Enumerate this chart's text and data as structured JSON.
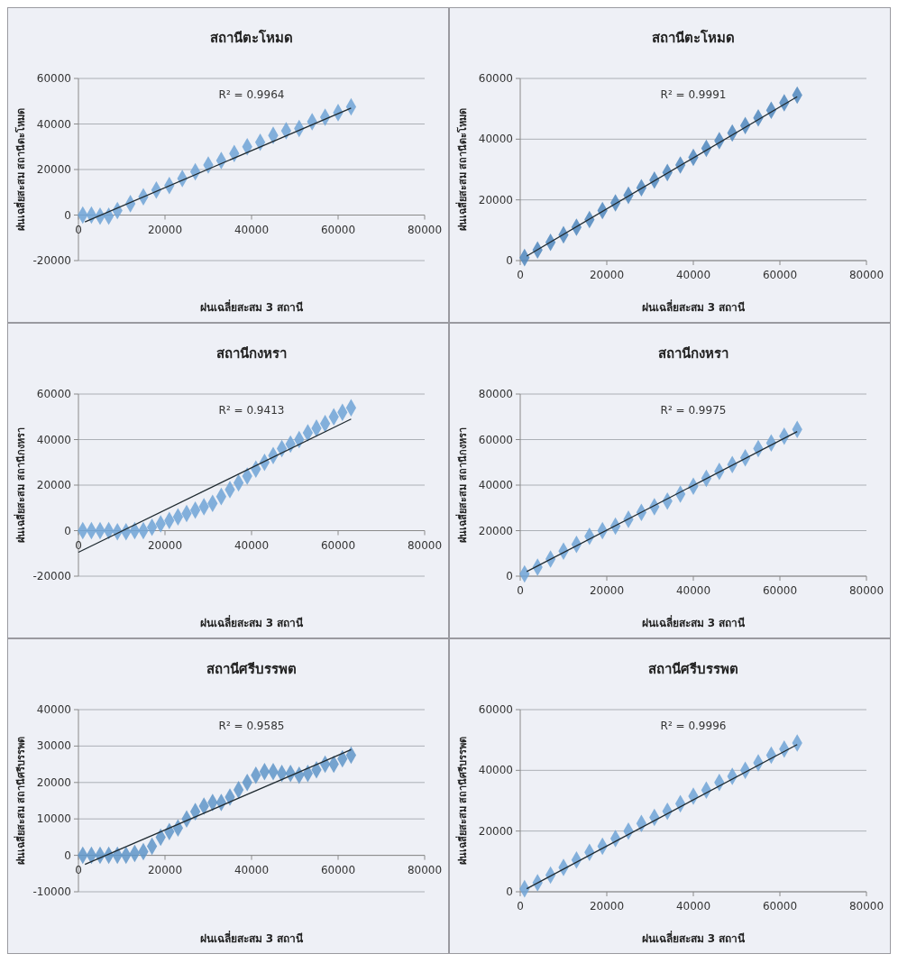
{
  "chart_data": [
    {
      "type": "scatter",
      "title": "สถานีตะโหมด",
      "xlabel": "ฝนเฉลี่ยสะสม 3 สถานี",
      "ylabel": "ฝนเฉลี่ยสะสม สถานีตะโหมด",
      "annotations": [
        "R² = 0.9964"
      ],
      "xlim": [
        0,
        80000
      ],
      "xticks": [
        0,
        20000,
        40000,
        60000,
        80000
      ],
      "ylim": [
        -20000,
        60000
      ],
      "yticks": [
        -20000,
        0,
        20000,
        40000,
        60000
      ],
      "grid": "y",
      "series": [
        {
          "color": "#6fa3d6",
          "marker": "diamond",
          "x": [
            1000,
            3000,
            5000,
            7000,
            9000,
            12000,
            15000,
            18000,
            21000,
            24000,
            27000,
            30000,
            33000,
            36000,
            39000,
            42000,
            45000,
            48000,
            51000,
            54000,
            57000,
            60000,
            63000
          ],
          "values": [
            0,
            0,
            -500,
            -500,
            2000,
            5000,
            8000,
            11000,
            13000,
            16000,
            19000,
            22000,
            24000,
            27000,
            30000,
            32000,
            35000,
            37000,
            38000,
            41000,
            43000,
            45000,
            47500
          ]
        },
        {
          "type": "line",
          "color": "#1f2a30",
          "x": [
            1500,
            63000
          ],
          "values": [
            -3000,
            47000
          ]
        }
      ]
    },
    {
      "type": "scatter",
      "title": "สถานีตะโหมด",
      "xlabel": "ฝนเฉลี่ยสะสม 3 สถานี",
      "ylabel": "ฝนเฉลี่ยสะสม สถานีตะโหมด",
      "annotations": [
        "R² = 0.9991"
      ],
      "xlim": [
        0,
        80000
      ],
      "xticks": [
        0,
        20000,
        40000,
        60000,
        80000
      ],
      "ylim": [
        0,
        60000
      ],
      "yticks": [
        0,
        20000,
        40000,
        60000
      ],
      "grid": "y",
      "series": [
        {
          "color": "#4f87bd",
          "marker": "diamond",
          "x": [
            1000,
            4000,
            7000,
            10000,
            13000,
            16000,
            19000,
            22000,
            25000,
            28000,
            31000,
            34000,
            37000,
            40000,
            43000,
            46000,
            49000,
            52000,
            55000,
            58000,
            61000,
            64000
          ],
          "values": [
            1000,
            3500,
            6000,
            8500,
            11000,
            13500,
            16500,
            19000,
            21500,
            24000,
            26500,
            29000,
            31500,
            34000,
            37000,
            39500,
            42000,
            44500,
            47000,
            49500,
            52000,
            54500
          ]
        },
        {
          "type": "line",
          "color": "#1f2a30",
          "x": [
            1500,
            64000
          ],
          "values": [
            1500,
            54000
          ]
        }
      ]
    },
    {
      "type": "scatter",
      "title": "สถานีกงหรา",
      "xlabel": "ฝนเฉลี่ยสะสม 3 สถานี",
      "ylabel": "ฝนเฉลี่ยสะสม สถานีกงหรา",
      "annotations": [
        "R² = 0.9413"
      ],
      "xlim": [
        0,
        80000
      ],
      "xticks": [
        0,
        20000,
        40000,
        60000,
        80000
      ],
      "ylim": [
        -20000,
        60000
      ],
      "yticks": [
        -20000,
        0,
        20000,
        40000,
        60000
      ],
      "grid": "y",
      "series": [
        {
          "color": "#6fa3d6",
          "marker": "diamond",
          "x": [
            1000,
            3000,
            5000,
            7000,
            9000,
            11000,
            13000,
            15000,
            17000,
            19000,
            21000,
            23000,
            25000,
            27000,
            29000,
            31000,
            33000,
            35000,
            37000,
            39000,
            41000,
            43000,
            45000,
            47000,
            49000,
            51000,
            53000,
            55000,
            57000,
            59000,
            61000,
            63000
          ],
          "values": [
            0,
            0,
            0,
            0,
            -500,
            -500,
            0,
            0,
            1500,
            3000,
            4500,
            6000,
            7500,
            9000,
            10500,
            12000,
            15000,
            18000,
            21000,
            24000,
            27000,
            30000,
            33000,
            36000,
            38000,
            40000,
            43000,
            45000,
            47000,
            50000,
            52000,
            54000
          ]
        },
        {
          "type": "line",
          "color": "#1f2a30",
          "x": [
            0,
            63000
          ],
          "values": [
            -9500,
            49000
          ]
        }
      ]
    },
    {
      "type": "scatter",
      "title": "สถานีกงหรา",
      "xlabel": "ฝนเฉลี่ยสะสม 3 สถานี",
      "ylabel": "ฝนเฉลี่ยสะสม สถานีกงหรา",
      "annotations": [
        "R² = 0.9975"
      ],
      "xlim": [
        0,
        80000
      ],
      "xticks": [
        0,
        20000,
        40000,
        60000,
        80000
      ],
      "ylim": [
        0,
        80000
      ],
      "yticks": [
        0,
        20000,
        40000,
        60000,
        80000
      ],
      "grid": "y",
      "series": [
        {
          "color": "#6fa3d6",
          "marker": "diamond",
          "x": [
            1000,
            4000,
            7000,
            10000,
            13000,
            16000,
            19000,
            22000,
            25000,
            28000,
            31000,
            34000,
            37000,
            40000,
            43000,
            46000,
            49000,
            52000,
            55000,
            58000,
            61000,
            64000
          ],
          "values": [
            1000,
            4000,
            7500,
            11000,
            14000,
            17500,
            20000,
            22000,
            25000,
            28000,
            30500,
            33000,
            36000,
            39500,
            43000,
            46000,
            49000,
            52000,
            56000,
            58500,
            61500,
            64500
          ]
        },
        {
          "type": "line",
          "color": "#1f2a30",
          "x": [
            1500,
            64000
          ],
          "values": [
            2000,
            63500
          ]
        }
      ]
    },
    {
      "type": "scatter",
      "title": "สถานีศรีบรรพต",
      "xlabel": "ฝนเฉลี่ยสะสม 3 สถานี",
      "ylabel": "ฝนเฉลี่ยสะสม สถานีศรีบรรพต",
      "annotations": [
        "R² = 0.9585"
      ],
      "xlim": [
        0,
        80000
      ],
      "xticks": [
        0,
        20000,
        40000,
        60000,
        80000
      ],
      "ylim": [
        -10000,
        40000
      ],
      "yticks": [
        -10000,
        0,
        10000,
        20000,
        30000,
        40000
      ],
      "grid": "y",
      "series": [
        {
          "color": "#5f95c8",
          "marker": "diamond",
          "x": [
            1000,
            3000,
            5000,
            7000,
            9000,
            11000,
            13000,
            15000,
            17000,
            19000,
            21000,
            23000,
            25000,
            27000,
            29000,
            31000,
            33000,
            35000,
            37000,
            39000,
            41000,
            43000,
            45000,
            47000,
            49000,
            51000,
            53000,
            55000,
            57000,
            59000,
            61000,
            63000
          ],
          "values": [
            0,
            0,
            0,
            0,
            0,
            0,
            500,
            1000,
            2500,
            5000,
            6500,
            7500,
            10000,
            12000,
            13500,
            14500,
            14500,
            16000,
            18000,
            20000,
            22000,
            23000,
            23000,
            22500,
            22500,
            22000,
            22500,
            23500,
            25000,
            25000,
            26500,
            27500
          ]
        },
        {
          "type": "line",
          "color": "#1f2a30",
          "x": [
            1500,
            63000
          ],
          "values": [
            -2500,
            29000
          ]
        }
      ]
    },
    {
      "type": "scatter",
      "title": "สถานีศรีบรรพต",
      "xlabel": "ฝนเฉลี่ยสะสม 3 สถานี",
      "ylabel": "ฝนเฉลี่ยสะสม สถานีศรีบรรพต",
      "annotations": [
        "R² = 0.9996"
      ],
      "xlim": [
        0,
        80000
      ],
      "xticks": [
        0,
        20000,
        40000,
        60000,
        80000
      ],
      "ylim": [
        0,
        60000
      ],
      "yticks": [
        0,
        20000,
        40000,
        60000
      ],
      "grid": "y",
      "series": [
        {
          "color": "#6fa3d6",
          "marker": "diamond",
          "x": [
            1000,
            4000,
            7000,
            10000,
            13000,
            16000,
            19000,
            22000,
            25000,
            28000,
            31000,
            34000,
            37000,
            40000,
            43000,
            46000,
            49000,
            52000,
            55000,
            58000,
            61000,
            64000
          ],
          "values": [
            1000,
            3000,
            5500,
            8000,
            10500,
            13000,
            15000,
            17500,
            20000,
            22500,
            24500,
            26500,
            29000,
            31500,
            33500,
            36000,
            38000,
            40000,
            42500,
            45000,
            47000,
            49000
          ]
        },
        {
          "type": "line",
          "color": "#1f2a30",
          "x": [
            1500,
            64000
          ],
          "values": [
            1000,
            48500
          ]
        }
      ]
    }
  ]
}
